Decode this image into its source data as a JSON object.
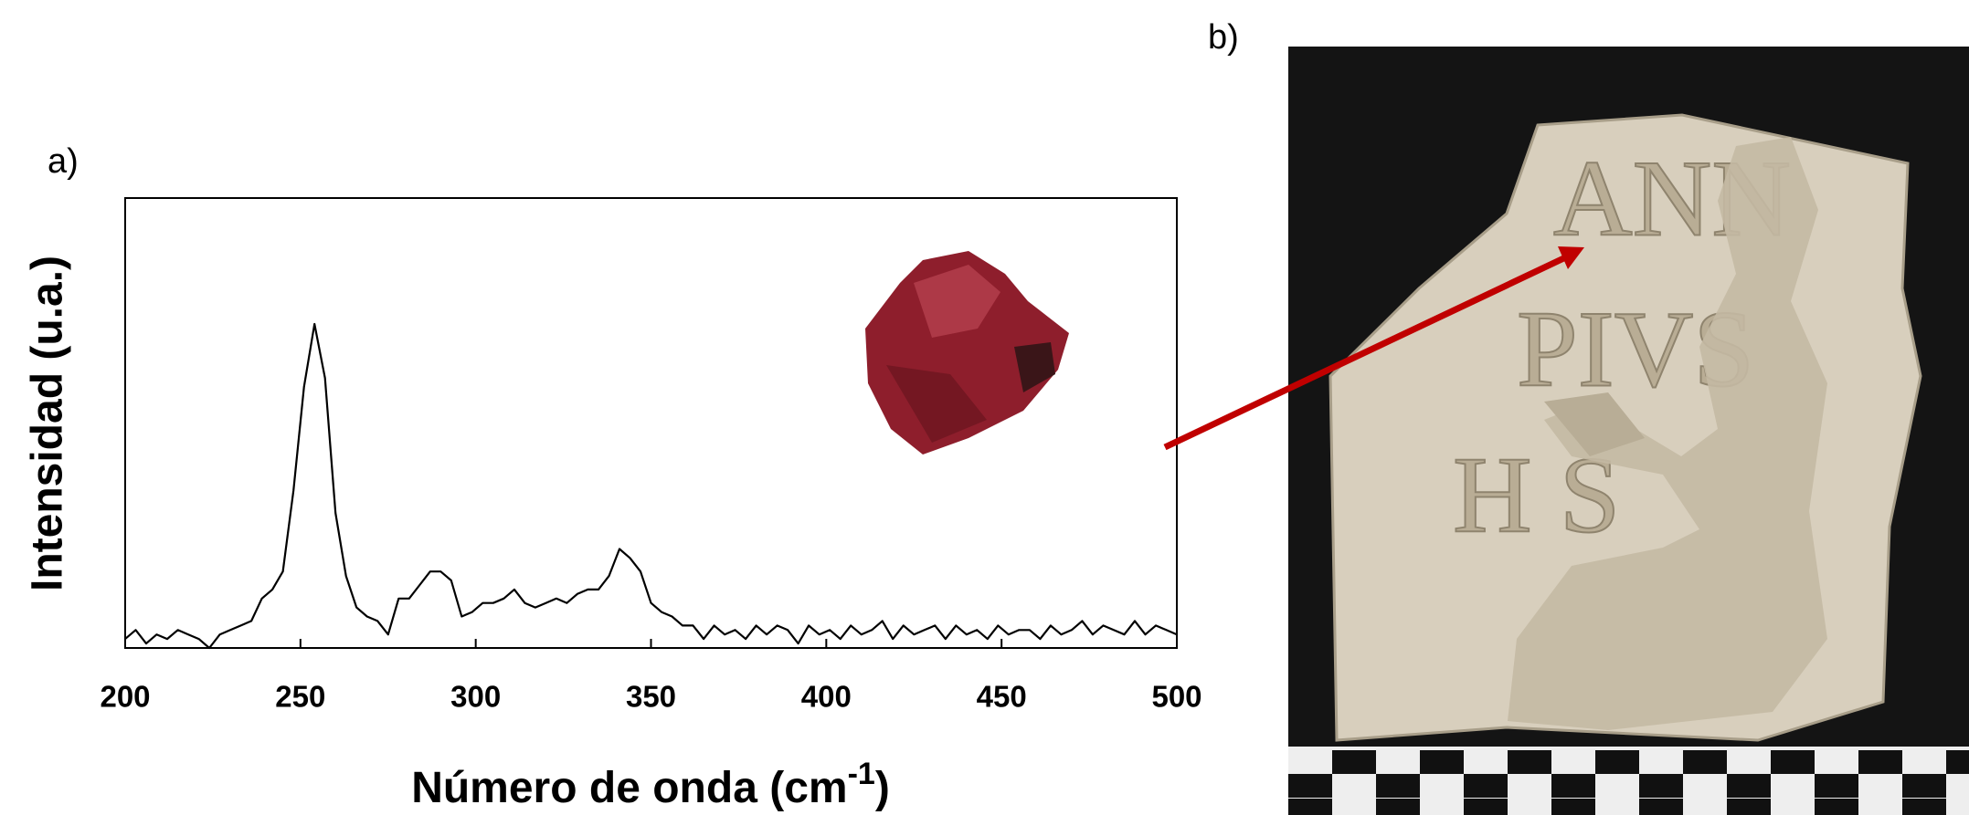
{
  "chart_data": {
    "type": "line",
    "panel_a": "a)",
    "panel_b": "b)",
    "y_label": "Intensidad (u.a.)",
    "x_label": {
      "text": "Número de onda (cm",
      "sup": "-1",
      "end": ")"
    },
    "x": [
      200,
      203,
      206,
      209,
      212,
      215,
      218,
      221,
      224,
      227,
      230,
      233,
      236,
      239,
      242,
      245,
      248,
      251,
      254,
      257,
      260,
      263,
      266,
      269,
      272,
      275,
      278,
      281,
      284,
      287,
      290,
      293,
      296,
      299,
      302,
      305,
      308,
      311,
      314,
      317,
      320,
      323,
      326,
      329,
      332,
      335,
      338,
      341,
      344,
      347,
      350,
      353,
      356,
      359,
      362,
      365,
      368,
      371,
      374,
      377,
      380,
      383,
      386,
      389,
      392,
      395,
      398,
      401,
      404,
      407,
      410,
      413,
      416,
      419,
      422,
      425,
      428,
      431,
      434,
      437,
      440,
      443,
      446,
      449,
      452,
      455,
      458,
      461,
      464,
      467,
      470,
      473,
      476,
      479,
      482,
      485,
      488,
      491,
      494,
      497,
      500
    ],
    "series": [
      {
        "color": "#000000",
        "values": [
          2,
          4,
          1,
          3,
          2,
          4,
          3,
          2,
          0,
          3,
          4,
          5,
          6,
          11,
          13,
          17,
          35,
          58,
          72,
          60,
          30,
          16,
          9,
          7,
          6,
          3,
          11,
          11,
          14,
          17,
          17,
          15,
          7,
          8,
          10,
          10,
          11,
          13,
          10,
          9,
          10,
          11,
          10,
          12,
          13,
          13,
          16,
          22,
          20,
          17,
          10,
          8,
          7,
          5,
          5,
          2,
          5,
          3,
          4,
          2,
          5,
          3,
          5,
          4,
          1,
          5,
          3,
          4,
          2,
          5,
          3,
          4,
          6,
          2,
          5,
          3,
          4,
          5,
          2,
          5,
          3,
          4,
          2,
          5,
          3,
          4,
          4,
          2,
          5,
          3,
          4,
          6,
          3,
          5,
          4,
          3,
          6,
          3,
          5,
          4,
          3
        ]
      }
    ],
    "xlim": [
      200,
      500
    ],
    "ylim": [
      0,
      100
    ],
    "xticks": [
      200,
      250,
      300,
      350,
      400,
      450,
      500
    ],
    "inscription": [
      "ANN",
      "PIVS",
      "H S"
    ]
  }
}
